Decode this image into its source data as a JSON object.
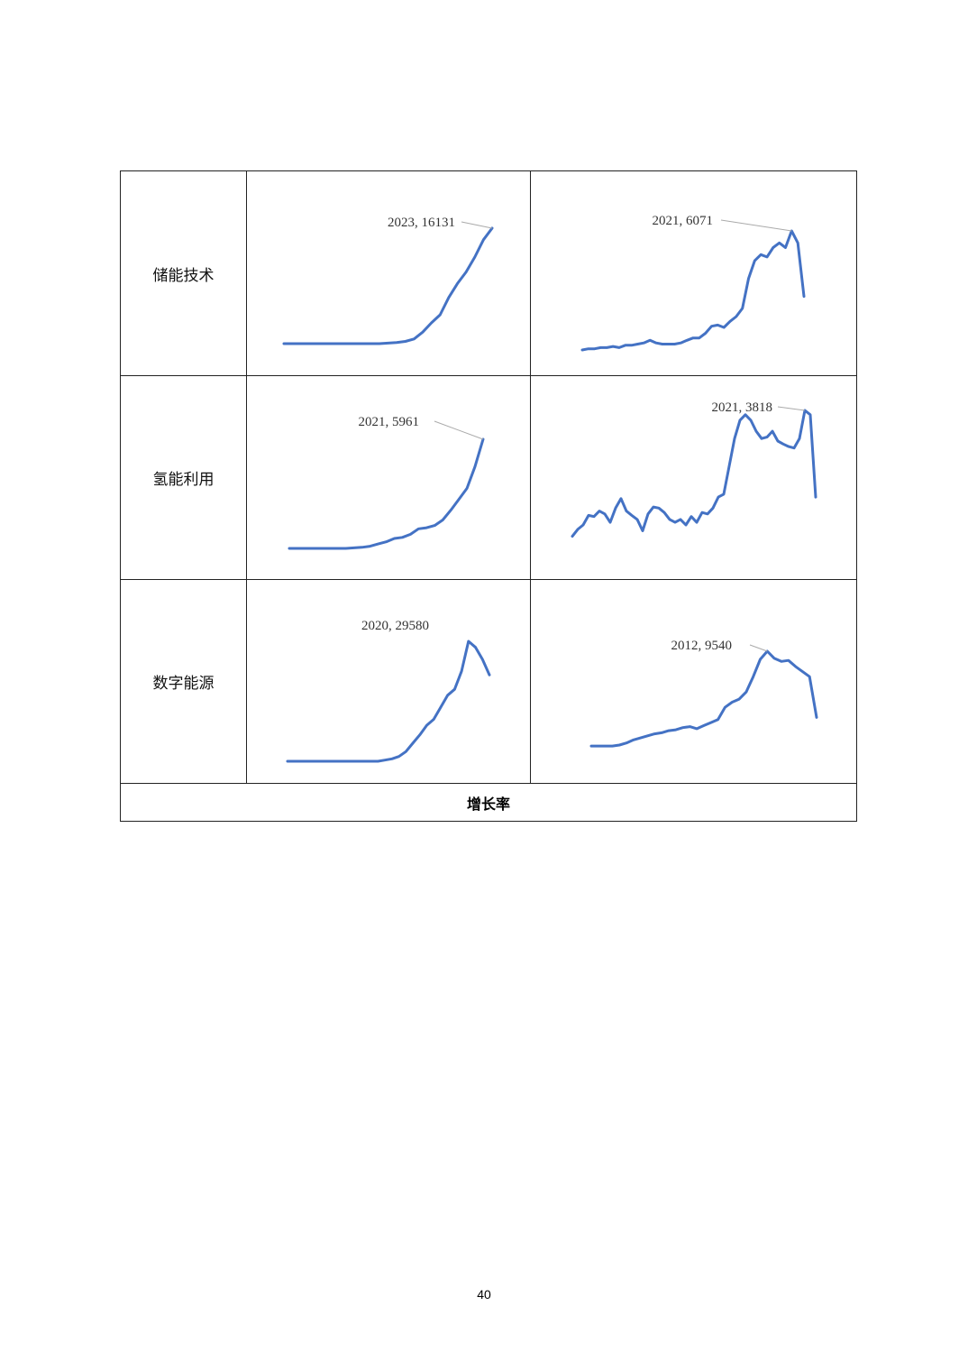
{
  "table": {
    "rows": [
      {
        "label": "储能技术"
      },
      {
        "label": "氢能利用"
      },
      {
        "label": "数字能源"
      }
    ],
    "footer_label": "增长率"
  },
  "page_number": "40",
  "chart_data": [
    {
      "type": "line",
      "row": "储能技术",
      "column": 1,
      "color": "#4472C4",
      "annotation": {
        "text": "2023, 16131",
        "x": 2023,
        "y": 16131
      },
      "values": [
        0,
        0,
        0,
        0,
        0,
        0,
        0,
        0,
        0,
        0,
        0,
        0,
        80,
        160,
        320,
        650,
        1610,
        2900,
        4030,
        6450,
        8390,
        10000,
        12100,
        14520,
        16131
      ]
    },
    {
      "type": "line",
      "row": "储能技术",
      "column": 2,
      "color": "#4472C4",
      "annotation": {
        "text": "2021, 6071",
        "x": 2021,
        "y": 6071
      },
      "values": [
        0,
        60,
        60,
        120,
        120,
        180,
        120,
        240,
        240,
        300,
        360,
        490,
        360,
        300,
        300,
        300,
        360,
        490,
        610,
        610,
        850,
        1210,
        1270,
        1150,
        1460,
        1700,
        2120,
        3640,
        4550,
        4860,
        4740,
        5220,
        5460,
        5220,
        6071,
        5460,
        2730
      ]
    },
    {
      "type": "line",
      "row": "氢能利用",
      "column": 1,
      "color": "#4472C4",
      "annotation": {
        "text": "2021, 5961",
        "x": 2021,
        "y": 5961
      },
      "values": [
        0,
        0,
        0,
        0,
        0,
        0,
        0,
        0,
        30,
        60,
        120,
        240,
        360,
        540,
        600,
        770,
        1070,
        1130,
        1250,
        1550,
        2090,
        2680,
        3280,
        4470,
        5961
      ]
    },
    {
      "type": "line",
      "row": "氢能利用",
      "column": 2,
      "color": "#4472C4",
      "annotation": {
        "text": "2021, 3818",
        "x": 2021,
        "y": 3818
      },
      "values": [
        380,
        570,
        690,
        950,
        920,
        1070,
        990,
        760,
        1150,
        1410,
        1070,
        950,
        840,
        530,
        990,
        1180,
        1150,
        1030,
        840,
        760,
        840,
        690,
        920,
        760,
        1030,
        990,
        1150,
        1450,
        1530,
        2290,
        3050,
        3550,
        3700,
        3550,
        3250,
        3050,
        3090,
        3250,
        2980,
        2900,
        2830,
        2790,
        3050,
        3818,
        3700,
        1450
      ]
    },
    {
      "type": "line",
      "row": "数字能源",
      "column": 1,
      "color": "#4472C4",
      "annotation": {
        "text": "2020, 29580",
        "x": 2020,
        "y": 29580
      },
      "values": [
        0,
        0,
        0,
        0,
        0,
        0,
        0,
        0,
        0,
        0,
        0,
        0,
        0,
        0,
        300,
        590,
        1180,
        2370,
        4440,
        6510,
        8870,
        10350,
        13310,
        16270,
        17750,
        22190,
        29580,
        28100,
        25140,
        21300
      ]
    },
    {
      "type": "line",
      "row": "数字能源",
      "column": 2,
      "color": "#4472C4",
      "annotation": {
        "text": "2012, 9540",
        "x": 2012,
        "y": 9540
      },
      "values": [
        670,
        670,
        670,
        670,
        760,
        950,
        1240,
        1430,
        1620,
        1810,
        1910,
        2100,
        2190,
        2390,
        2480,
        2290,
        2580,
        2860,
        3150,
        4290,
        4770,
        5060,
        5720,
        7160,
        8780,
        9540,
        8870,
        8590,
        8680,
        8110,
        7630,
        7160,
        3340
      ]
    }
  ]
}
